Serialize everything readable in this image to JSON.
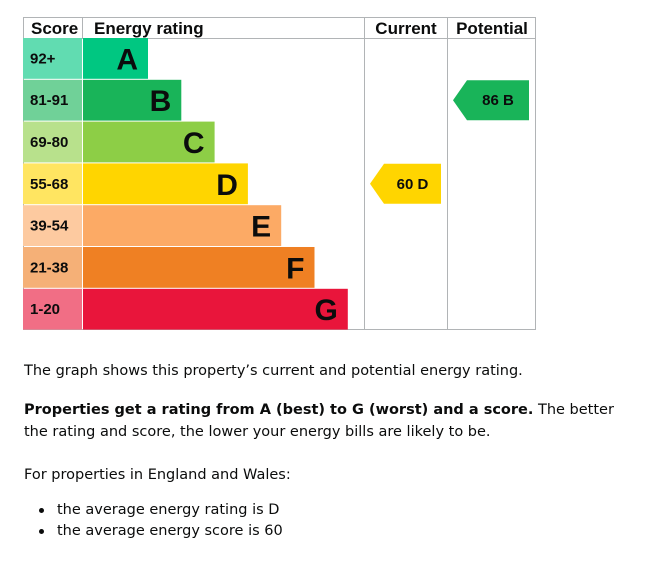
{
  "chart_data": {
    "type": "bar",
    "headers": {
      "score": "Score",
      "energy_rating": "Energy rating",
      "current": "Current",
      "potential": "Potential"
    },
    "bands": [
      {
        "score_range": "92+",
        "letter": "A",
        "color": "#00c781"
      },
      {
        "score_range": "81-91",
        "letter": "B",
        "color": "#19b459"
      },
      {
        "score_range": "69-80",
        "letter": "C",
        "color": "#8dce46"
      },
      {
        "score_range": "55-68",
        "letter": "D",
        "color": "#ffd500"
      },
      {
        "score_range": "39-54",
        "letter": "E",
        "color": "#fcaa65"
      },
      {
        "score_range": "21-38",
        "letter": "F",
        "color": "#ef8023"
      },
      {
        "score_range": "1-20",
        "letter": "G",
        "color": "#e9153b"
      }
    ],
    "current": {
      "score": 60,
      "band": "D",
      "label": "60 D",
      "color": "#ffd500"
    },
    "potential": {
      "score": 86,
      "band": "B",
      "label": "86 B",
      "color": "#19b459"
    }
  },
  "text": {
    "graph_description": "The graph shows this property’s current and potential energy rating.",
    "rating_bold": "Properties get a rating from A (best) to G (worst) and a score.",
    "rating_rest": " The better the rating and score, the lower your energy bills are likely to be.",
    "england_wales": "For properties in England and Wales:",
    "bullets": [
      "the average energy rating is D",
      "the average energy score is 60"
    ]
  }
}
